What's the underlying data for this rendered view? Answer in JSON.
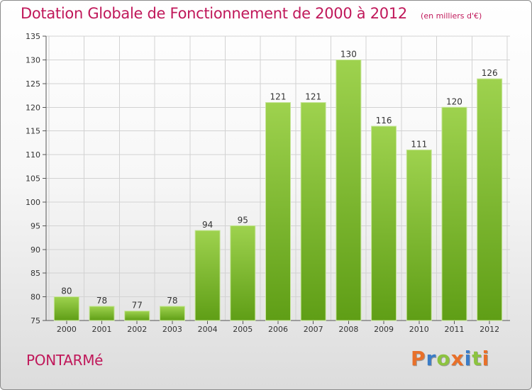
{
  "header": {
    "title": "Dotation Globale de Fonctionnement de 2000 à 2012",
    "subtitle": "(en milliers d'€)"
  },
  "footer": {
    "commune": "PONTARMé",
    "brand": {
      "letters": [
        "P",
        "r",
        "o",
        "x",
        "i",
        "t",
        "i"
      ],
      "colors": [
        "#e8702a",
        "#3a7cc7",
        "#8cc33f",
        "#e8702a",
        "#3a7cc7",
        "#8cc33f",
        "#e8702a"
      ]
    }
  },
  "chart_data": {
    "type": "bar",
    "categories": [
      "2000",
      "2001",
      "2002",
      "2003",
      "2004",
      "2005",
      "2006",
      "2007",
      "2008",
      "2009",
      "2010",
      "2011",
      "2012"
    ],
    "values": [
      80,
      78,
      77,
      78,
      94,
      95,
      121,
      121,
      130,
      116,
      111,
      120,
      126
    ],
    "data_labels": [
      "80",
      "78",
      "77",
      "78",
      "94",
      "95",
      "121",
      "121",
      "130",
      "116",
      "111",
      "120",
      "126"
    ],
    "ylim": [
      75,
      135
    ],
    "y_ticks": [
      75,
      80,
      85,
      90,
      95,
      100,
      105,
      110,
      115,
      120,
      125,
      130,
      135
    ],
    "grid": true,
    "bar_color_top": "#9ed24e",
    "bar_color_bottom": "#5f9e16",
    "xlabel": "",
    "ylabel": ""
  }
}
